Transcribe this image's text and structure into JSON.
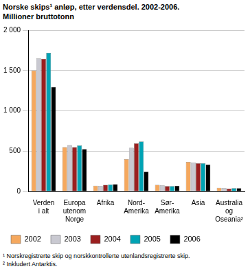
{
  "chart_data": {
    "type": "bar",
    "title": "Norske skips¹ anløp, etter verdensdel. 2002-2006.",
    "subtitle": "Millioner bruttotonn",
    "annotations": [
      "¹ Norskregistrerte skip og norskkontrollerte utenlandsregistrerte skip.",
      "² Inkludert Antarktis."
    ],
    "categories": [
      [
        "Verden",
        "i alt"
      ],
      [
        "Europa",
        "utenom",
        "Norge"
      ],
      [
        "Afrika"
      ],
      [
        "Nord-",
        "Amerika"
      ],
      [
        "Sør-",
        "Amerika"
      ],
      [
        "Asia"
      ],
      [
        "Australia",
        "og",
        "Oseania²"
      ]
    ],
    "series": [
      {
        "name": "2002",
        "color": "#f5a85e",
        "values": [
          1500,
          550,
          70,
          400,
          80,
          365,
          45
        ]
      },
      {
        "name": "2003",
        "color": "#c9c9d1",
        "values": [
          1650,
          575,
          65,
          540,
          75,
          360,
          40
        ]
      },
      {
        "name": "2004",
        "color": "#9b1f1f",
        "values": [
          1645,
          550,
          80,
          595,
          65,
          350,
          35
        ]
      },
      {
        "name": "2005",
        "color": "#00a3b4",
        "values": [
          1720,
          570,
          85,
          620,
          65,
          350,
          40
        ]
      },
      {
        "name": "2006",
        "color": "#000000",
        "values": [
          1295,
          525,
          90,
          245,
          70,
          335,
          40
        ]
      }
    ],
    "ylim": [
      0,
      2000
    ],
    "yticks": [
      0,
      500,
      {
        "value": 1000,
        "label": "1 000"
      },
      {
        "value": 1500,
        "label": "1 500"
      },
      {
        "value": 2000,
        "label": "2 000"
      }
    ],
    "grid": true,
    "legend": "bottom"
  }
}
